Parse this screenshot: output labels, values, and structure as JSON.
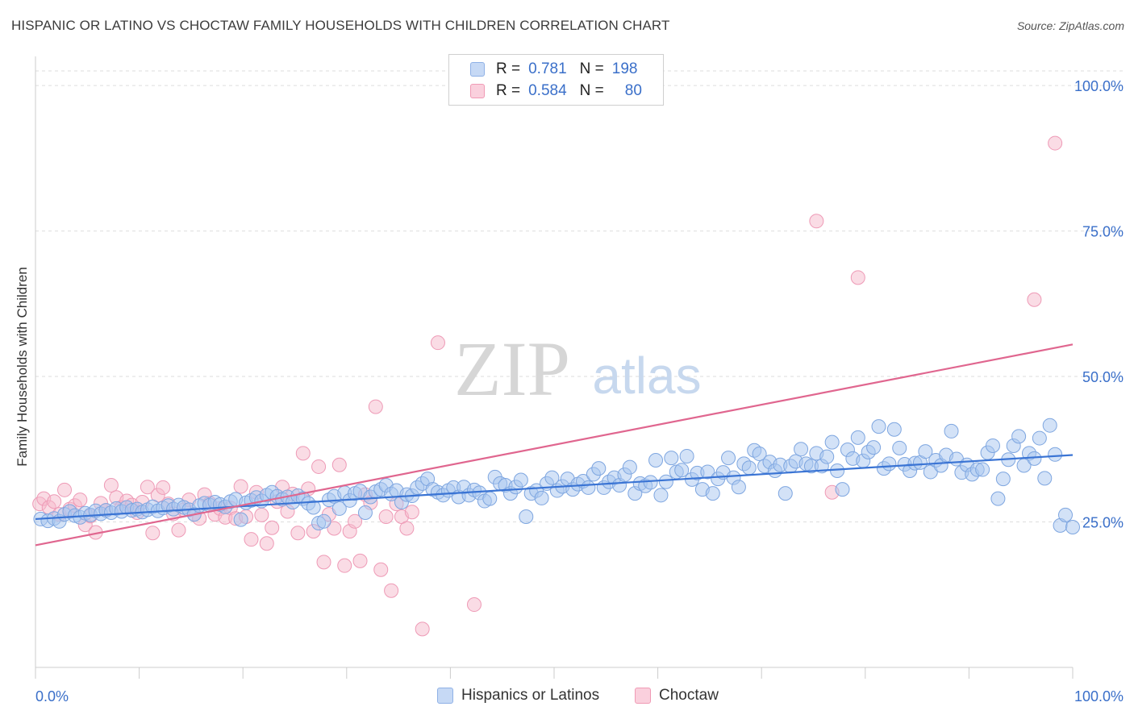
{
  "title": "HISPANIC OR LATINO VS CHOCTAW FAMILY HOUSEHOLDS WITH CHILDREN CORRELATION CHART",
  "source": "Source: ZipAtlas.com",
  "watermark": {
    "zip": "ZIP",
    "atlas": "atlas"
  },
  "legend_top": {
    "rows": [
      {
        "r_label": "R = ",
        "r_value": "0.781",
        "n_label": "N = ",
        "n_value": "198",
        "color": "#a8c6f0"
      },
      {
        "r_label": "R = ",
        "r_value": "0.584",
        "n_label": "N = ",
        "n_value": "80",
        "color": "#f6b9cc"
      }
    ]
  },
  "legend_bottom": {
    "items": [
      {
        "label": "Hispanics or Latinos",
        "color": "#a8c6f0"
      },
      {
        "label": "Choctaw",
        "color": "#f6b9cc"
      }
    ]
  },
  "chart_data": {
    "type": "scatter",
    "ylabel": "Family Households with Children",
    "xlim": [
      0,
      100
    ],
    "ylim": [
      0,
      105
    ],
    "x_tick_labels": [
      {
        "x": 0,
        "label": "0.0%"
      },
      {
        "x": 100,
        "label": "100.0%"
      }
    ],
    "y_tick_labels": [
      {
        "y": 25,
        "label": "25.0%"
      },
      {
        "y": 50,
        "label": "50.0%"
      },
      {
        "y": 75,
        "label": "75.0%"
      },
      {
        "y": 100,
        "label": "100.0%"
      }
    ],
    "grid": "horizontal dashed",
    "colors": {
      "blue_fill": "#a8c6f0",
      "blue_line": "#3a74d4",
      "pink_fill": "#f6b9cc",
      "pink_line": "#e0668f",
      "tick_label": "#3a6fc9"
    },
    "series": [
      {
        "name": "Hispanics or Latinos",
        "trend": {
          "x": [
            0,
            100
          ],
          "y": [
            25.5,
            36.5
          ]
        },
        "points": [
          [
            0.5,
            25.5
          ],
          [
            1.2,
            25.2
          ],
          [
            1.8,
            25.6
          ],
          [
            2.3,
            25.1
          ],
          [
            2.8,
            26.3
          ],
          [
            3.3,
            26.8
          ],
          [
            3.8,
            26.1
          ],
          [
            4.3,
            25.8
          ],
          [
            4.8,
            26.5
          ],
          [
            5.3,
            26.2
          ],
          [
            5.8,
            26.9
          ],
          [
            6.3,
            26.4
          ],
          [
            6.8,
            27.0
          ],
          [
            7.3,
            26.6
          ],
          [
            7.8,
            27.3
          ],
          [
            8.3,
            26.8
          ],
          [
            8.8,
            27.5
          ],
          [
            9.3,
            27.0
          ],
          [
            9.8,
            27.2
          ],
          [
            10.3,
            26.7
          ],
          [
            10.8,
            27.1
          ],
          [
            11.3,
            27.6
          ],
          [
            11.8,
            26.9
          ],
          [
            12.3,
            27.4
          ],
          [
            12.8,
            27.8
          ],
          [
            13.3,
            27.2
          ],
          [
            13.8,
            27.9
          ],
          [
            14.3,
            27.5
          ],
          [
            14.8,
            27.1
          ],
          [
            15.3,
            26.3
          ],
          [
            15.8,
            27.8
          ],
          [
            16.3,
            28.2
          ],
          [
            16.8,
            27.9
          ],
          [
            17.3,
            28.4
          ],
          [
            17.8,
            28.0
          ],
          [
            18.3,
            27.6
          ],
          [
            18.8,
            28.5
          ],
          [
            19.3,
            28.9
          ],
          [
            19.8,
            25.4
          ],
          [
            20.3,
            28.3
          ],
          [
            20.8,
            28.7
          ],
          [
            21.3,
            29.2
          ],
          [
            21.8,
            28.6
          ],
          [
            22.3,
            29.6
          ],
          [
            22.8,
            30.1
          ],
          [
            23.3,
            29.4
          ],
          [
            23.8,
            28.9
          ],
          [
            24.3,
            29.3
          ],
          [
            24.8,
            28.4
          ],
          [
            25.3,
            29.5
          ],
          [
            25.8,
            29.0
          ],
          [
            26.3,
            28.2
          ],
          [
            26.8,
            27.5
          ],
          [
            27.3,
            24.8
          ],
          [
            27.8,
            25.1
          ],
          [
            28.3,
            28.8
          ],
          [
            28.8,
            29.4
          ],
          [
            29.3,
            27.3
          ],
          [
            29.8,
            30.0
          ],
          [
            30.3,
            28.7
          ],
          [
            30.8,
            29.9
          ],
          [
            31.3,
            30.3
          ],
          [
            31.8,
            26.6
          ],
          [
            32.3,
            29.3
          ],
          [
            32.8,
            30.2
          ],
          [
            33.3,
            30.6
          ],
          [
            33.8,
            31.3
          ],
          [
            34.3,
            29.8
          ],
          [
            34.8,
            30.4
          ],
          [
            35.3,
            28.4
          ],
          [
            35.8,
            29.7
          ],
          [
            36.3,
            29.5
          ],
          [
            36.8,
            30.9
          ],
          [
            37.3,
            31.6
          ],
          [
            37.8,
            32.4
          ],
          [
            38.3,
            30.6
          ],
          [
            38.8,
            30.1
          ],
          [
            39.3,
            29.6
          ],
          [
            39.8,
            30.4
          ],
          [
            40.3,
            30.9
          ],
          [
            40.8,
            29.3
          ],
          [
            41.3,
            31.0
          ],
          [
            41.8,
            29.6
          ],
          [
            42.3,
            30.5
          ],
          [
            42.8,
            30.0
          ],
          [
            43.3,
            28.6
          ],
          [
            43.8,
            29.0
          ],
          [
            44.3,
            32.7
          ],
          [
            44.8,
            31.6
          ],
          [
            45.3,
            31.3
          ],
          [
            45.8,
            29.9
          ],
          [
            46.3,
            31.0
          ],
          [
            46.8,
            32.2
          ],
          [
            47.3,
            25.9
          ],
          [
            47.8,
            29.9
          ],
          [
            48.3,
            30.4
          ],
          [
            48.8,
            29.1
          ],
          [
            49.3,
            31.6
          ],
          [
            49.8,
            32.6
          ],
          [
            50.3,
            30.4
          ],
          [
            50.8,
            31.1
          ],
          [
            51.3,
            32.4
          ],
          [
            51.8,
            30.6
          ],
          [
            52.3,
            31.5
          ],
          [
            52.8,
            32.0
          ],
          [
            53.3,
            30.9
          ],
          [
            53.8,
            33.2
          ],
          [
            54.3,
            34.2
          ],
          [
            54.8,
            30.9
          ],
          [
            55.3,
            31.9
          ],
          [
            55.8,
            32.6
          ],
          [
            56.3,
            31.3
          ],
          [
            56.8,
            33.1
          ],
          [
            57.3,
            34.4
          ],
          [
            57.8,
            29.9
          ],
          [
            58.3,
            31.6
          ],
          [
            58.8,
            31.2
          ],
          [
            59.3,
            31.8
          ],
          [
            59.8,
            35.6
          ],
          [
            60.3,
            29.6
          ],
          [
            60.8,
            31.9
          ],
          [
            61.3,
            36.0
          ],
          [
            61.8,
            33.6
          ],
          [
            62.3,
            33.9
          ],
          [
            62.8,
            36.3
          ],
          [
            63.3,
            32.3
          ],
          [
            63.8,
            33.4
          ],
          [
            64.3,
            30.6
          ],
          [
            64.8,
            33.6
          ],
          [
            65.3,
            29.9
          ],
          [
            65.8,
            32.4
          ],
          [
            66.3,
            33.5
          ],
          [
            66.8,
            36.0
          ],
          [
            67.3,
            32.6
          ],
          [
            67.8,
            31.0
          ],
          [
            68.3,
            35.0
          ],
          [
            68.8,
            34.3
          ],
          [
            69.3,
            37.3
          ],
          [
            69.8,
            36.7
          ],
          [
            70.3,
            34.6
          ],
          [
            70.8,
            35.3
          ],
          [
            71.3,
            33.8
          ],
          [
            71.8,
            34.8
          ],
          [
            72.3,
            29.9
          ],
          [
            72.8,
            34.6
          ],
          [
            73.3,
            35.4
          ],
          [
            73.8,
            37.5
          ],
          [
            74.3,
            35.0
          ],
          [
            74.8,
            34.6
          ],
          [
            75.3,
            36.8
          ],
          [
            75.8,
            34.6
          ],
          [
            76.3,
            36.2
          ],
          [
            76.8,
            38.7
          ],
          [
            77.3,
            33.8
          ],
          [
            77.8,
            30.6
          ],
          [
            78.3,
            37.4
          ],
          [
            78.8,
            35.9
          ],
          [
            79.3,
            39.5
          ],
          [
            79.8,
            35.5
          ],
          [
            80.3,
            37.0
          ],
          [
            80.8,
            37.8
          ],
          [
            81.3,
            41.4
          ],
          [
            81.8,
            34.2
          ],
          [
            82.3,
            35.0
          ],
          [
            82.8,
            40.9
          ],
          [
            83.3,
            37.7
          ],
          [
            83.8,
            34.9
          ],
          [
            84.3,
            33.8
          ],
          [
            84.8,
            35.1
          ],
          [
            85.3,
            35.2
          ],
          [
            85.8,
            37.1
          ],
          [
            86.3,
            33.6
          ],
          [
            86.8,
            35.6
          ],
          [
            87.3,
            34.7
          ],
          [
            87.8,
            36.5
          ],
          [
            88.3,
            40.6
          ],
          [
            88.8,
            35.8
          ],
          [
            89.3,
            33.5
          ],
          [
            89.8,
            34.8
          ],
          [
            90.3,
            33.2
          ],
          [
            90.8,
            34.0
          ],
          [
            91.3,
            34.0
          ],
          [
            91.8,
            36.9
          ],
          [
            92.3,
            38.1
          ],
          [
            92.8,
            29.0
          ],
          [
            93.3,
            32.4
          ],
          [
            93.8,
            35.7
          ],
          [
            94.3,
            38.1
          ],
          [
            94.8,
            39.7
          ],
          [
            95.3,
            34.7
          ],
          [
            95.8,
            36.8
          ],
          [
            96.3,
            35.9
          ],
          [
            96.8,
            39.4
          ],
          [
            97.3,
            32.5
          ],
          [
            97.8,
            41.6
          ],
          [
            98.3,
            36.6
          ],
          [
            98.8,
            24.4
          ],
          [
            99.3,
            26.2
          ],
          [
            100.0,
            24.1
          ]
        ]
      },
      {
        "name": "Choctaw",
        "trend": {
          "x": [
            0,
            100
          ],
          "y": [
            21.0,
            55.5
          ]
        },
        "points": [
          [
            0.4,
            28.1
          ],
          [
            0.8,
            29.0
          ],
          [
            1.3,
            27.5
          ],
          [
            1.8,
            28.5
          ],
          [
            2.3,
            26.3
          ],
          [
            2.8,
            30.5
          ],
          [
            3.3,
            27.2
          ],
          [
            3.8,
            27.8
          ],
          [
            4.3,
            28.8
          ],
          [
            4.8,
            24.5
          ],
          [
            5.3,
            26.0
          ],
          [
            5.8,
            23.2
          ],
          [
            6.3,
            28.2
          ],
          [
            6.8,
            27.0
          ],
          [
            7.3,
            31.3
          ],
          [
            7.8,
            29.2
          ],
          [
            8.3,
            27.5
          ],
          [
            8.8,
            28.6
          ],
          [
            9.3,
            27.9
          ],
          [
            9.8,
            26.6
          ],
          [
            10.3,
            28.4
          ],
          [
            10.8,
            31.0
          ],
          [
            11.3,
            23.1
          ],
          [
            11.8,
            29.6
          ],
          [
            12.3,
            30.9
          ],
          [
            12.8,
            28.1
          ],
          [
            13.3,
            26.4
          ],
          [
            13.8,
            23.6
          ],
          [
            14.3,
            27.1
          ],
          [
            14.8,
            28.8
          ],
          [
            15.3,
            26.3
          ],
          [
            15.8,
            25.6
          ],
          [
            16.3,
            29.7
          ],
          [
            16.8,
            28.2
          ],
          [
            17.3,
            26.3
          ],
          [
            17.8,
            27.3
          ],
          [
            18.3,
            25.8
          ],
          [
            18.8,
            27.4
          ],
          [
            19.3,
            25.6
          ],
          [
            19.8,
            31.1
          ],
          [
            20.3,
            25.9
          ],
          [
            20.8,
            22.0
          ],
          [
            21.3,
            30.1
          ],
          [
            21.8,
            26.2
          ],
          [
            22.3,
            21.3
          ],
          [
            22.8,
            24.0
          ],
          [
            23.3,
            28.5
          ],
          [
            23.8,
            31.0
          ],
          [
            24.3,
            26.8
          ],
          [
            24.8,
            29.8
          ],
          [
            25.3,
            23.1
          ],
          [
            25.8,
            36.8
          ],
          [
            26.3,
            30.7
          ],
          [
            26.8,
            23.4
          ],
          [
            27.3,
            34.5
          ],
          [
            27.8,
            18.1
          ],
          [
            28.3,
            26.3
          ],
          [
            28.8,
            23.9
          ],
          [
            29.3,
            34.8
          ],
          [
            29.8,
            17.5
          ],
          [
            30.3,
            23.4
          ],
          [
            30.8,
            25.1
          ],
          [
            31.3,
            18.3
          ],
          [
            31.8,
            29.7
          ],
          [
            32.3,
            28.3
          ],
          [
            32.8,
            44.8
          ],
          [
            33.3,
            16.8
          ],
          [
            33.8,
            25.9
          ],
          [
            34.3,
            13.2
          ],
          [
            34.8,
            28.1
          ],
          [
            35.3,
            25.9
          ],
          [
            35.8,
            23.9
          ],
          [
            36.3,
            26.7
          ],
          [
            37.3,
            6.6
          ],
          [
            38.8,
            55.8
          ],
          [
            42.3,
            10.8
          ],
          [
            75.3,
            76.7
          ],
          [
            76.8,
            30.1
          ],
          [
            79.3,
            67.0
          ],
          [
            96.3,
            63.2
          ],
          [
            98.3,
            90.1
          ]
        ]
      }
    ]
  }
}
